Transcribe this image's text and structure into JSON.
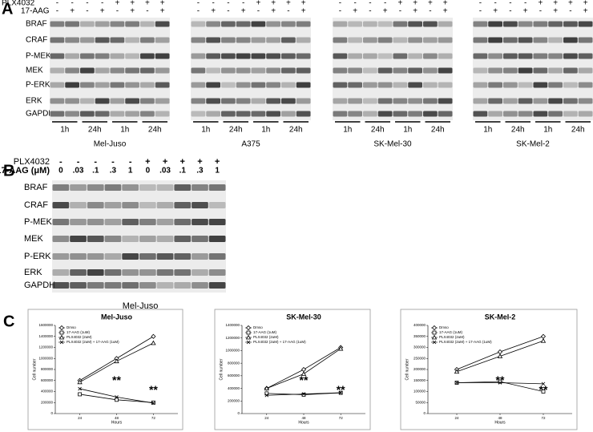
{
  "panel_a": {
    "label": "A",
    "treatment_labels": [
      "PLX4032",
      "17-AAG"
    ],
    "proteins": [
      "BRAF",
      "CRAF",
      "P-MEK",
      "MEK",
      "P-ERK",
      "ERK",
      "GAPDH"
    ],
    "blots": [
      {
        "name": "Mel-Juso",
        "plx4032": [
          "-",
          "-",
          "-",
          "-",
          "+",
          "+",
          "+",
          "+"
        ],
        "aag": [
          "-",
          "+",
          "-",
          "+",
          "-",
          "+",
          "-",
          "+"
        ],
        "times": [
          "1h",
          "24h",
          "1h",
          "24h"
        ]
      },
      {
        "name": "A375",
        "plx4032": [
          "-",
          "-",
          "-",
          "-",
          "+",
          "+",
          "+",
          "+"
        ],
        "aag": [
          "-",
          "+",
          "-",
          "+",
          "-",
          "+",
          "-",
          "+"
        ],
        "times": [
          "1h",
          "24h",
          "1h",
          "24h"
        ]
      },
      {
        "name": "SK-Mel-30",
        "plx4032": [
          "-",
          "-",
          "-",
          "-",
          "+",
          "+",
          "+",
          "+"
        ],
        "aag": [
          "-",
          "+",
          "-",
          "+",
          "-",
          "+",
          "-",
          "+"
        ],
        "times": [
          "1h",
          "24h",
          "1h",
          "24h"
        ]
      },
      {
        "name": "SK-Mel-2",
        "plx4032": [
          "-",
          "-",
          "-",
          "-",
          "+",
          "+",
          "+",
          "+"
        ],
        "aag": [
          "-",
          "+",
          "-",
          "+",
          "-",
          "+",
          "-",
          "+"
        ],
        "times": [
          "1h",
          "24h",
          "1h",
          "24h"
        ]
      }
    ]
  },
  "panel_b": {
    "label": "B",
    "treatment_labels": [
      "PLX4032",
      "17-AAG (μM)"
    ],
    "plx4032": [
      "-",
      "-",
      "-",
      "-",
      "-",
      "+",
      "+",
      "+",
      "+",
      "+"
    ],
    "aag": [
      "0",
      ".03",
      ".1",
      ".3",
      "1",
      "0",
      ".03",
      ".1",
      ".3",
      "1"
    ],
    "proteins": [
      "BRAF",
      "CRAF",
      "P-MEK",
      "MEK",
      "P-ERK",
      "ERK",
      "GAPDH"
    ],
    "caption": "Mel-Juso"
  },
  "panel_c": {
    "label": "C"
  },
  "chart_data": [
    {
      "type": "line",
      "title": "Mel-Juso",
      "x": [
        24,
        48,
        72
      ],
      "xlim": [
        8,
        88
      ],
      "xticks": [
        24,
        48,
        72
      ],
      "xlabel": "Hours",
      "ylabel": "Cell number",
      "ylim": [
        0,
        1600000
      ],
      "yticks": [
        0,
        200000,
        400000,
        600000,
        800000,
        1000000,
        1200000,
        1400000,
        1600000
      ],
      "annotations": [
        "**",
        "**"
      ],
      "series": [
        {
          "name": "Dmso",
          "color": "#000000",
          "marker": "diamond",
          "values": [
            600000,
            1000000,
            1400000
          ]
        },
        {
          "name": "17-AAG (1uM)",
          "color": "#000000",
          "marker": "square",
          "values": [
            350000,
            250000,
            200000
          ]
        },
        {
          "name": "PLX4032 (2uM)",
          "color": "#000000",
          "marker": "triangle",
          "values": [
            570000,
            950000,
            1280000
          ]
        },
        {
          "name": "PLX4032 (2uM) + 17-AAG (1uM)",
          "color": "#000000",
          "marker": "x",
          "values": [
            450000,
            300000,
            190000
          ]
        }
      ]
    },
    {
      "type": "line",
      "title": "SK-Mel-30",
      "x": [
        24,
        48,
        72
      ],
      "xlim": [
        8,
        88
      ],
      "xticks": [
        24,
        48,
        72
      ],
      "xlabel": "Hours",
      "ylabel": "Cell number",
      "ylim": [
        0,
        1400000
      ],
      "yticks": [
        0,
        200000,
        400000,
        600000,
        800000,
        1000000,
        1200000,
        1400000
      ],
      "annotations": [
        "**",
        "**"
      ],
      "series": [
        {
          "name": "Dmso",
          "color": "#000000",
          "marker": "diamond",
          "values": [
            400000,
            700000,
            1050000
          ]
        },
        {
          "name": "17-AAG (1uM)",
          "color": "#000000",
          "marker": "square",
          "values": [
            320000,
            300000,
            330000
          ]
        },
        {
          "name": "PLX4032 (2uM)",
          "color": "#000000",
          "marker": "triangle",
          "values": [
            400000,
            630000,
            1030000
          ]
        },
        {
          "name": "PLX4032 (2uM) + 17-AAG (1uM)",
          "color": "#000000",
          "marker": "x",
          "values": [
            290000,
            310000,
            330000
          ]
        }
      ]
    },
    {
      "type": "line",
      "title": "SK-Mel-2",
      "x": [
        24,
        48,
        72
      ],
      "xlim": [
        8,
        88
      ],
      "xticks": [
        24,
        48,
        72
      ],
      "xlabel": "Hours",
      "ylabel": "Cell number",
      "ylim": [
        0,
        400000
      ],
      "yticks": [
        0,
        50000,
        100000,
        150000,
        200000,
        250000,
        300000,
        350000,
        400000
      ],
      "annotations": [
        "**",
        "**"
      ],
      "series": [
        {
          "name": "Dmso",
          "color": "#000000",
          "marker": "diamond",
          "values": [
            200000,
            280000,
            350000
          ]
        },
        {
          "name": "17-AAG (1uM)",
          "color": "#000000",
          "marker": "square",
          "values": [
            140000,
            145000,
            100000
          ]
        },
        {
          "name": "PLX4032 (2uM)",
          "color": "#000000",
          "marker": "triangle",
          "values": [
            190000,
            260000,
            330000
          ]
        },
        {
          "name": "PLX4032 (2uM) + 17-AAG (1uM)",
          "color": "#000000",
          "marker": "x",
          "values": [
            140000,
            140000,
            135000
          ]
        }
      ]
    }
  ]
}
